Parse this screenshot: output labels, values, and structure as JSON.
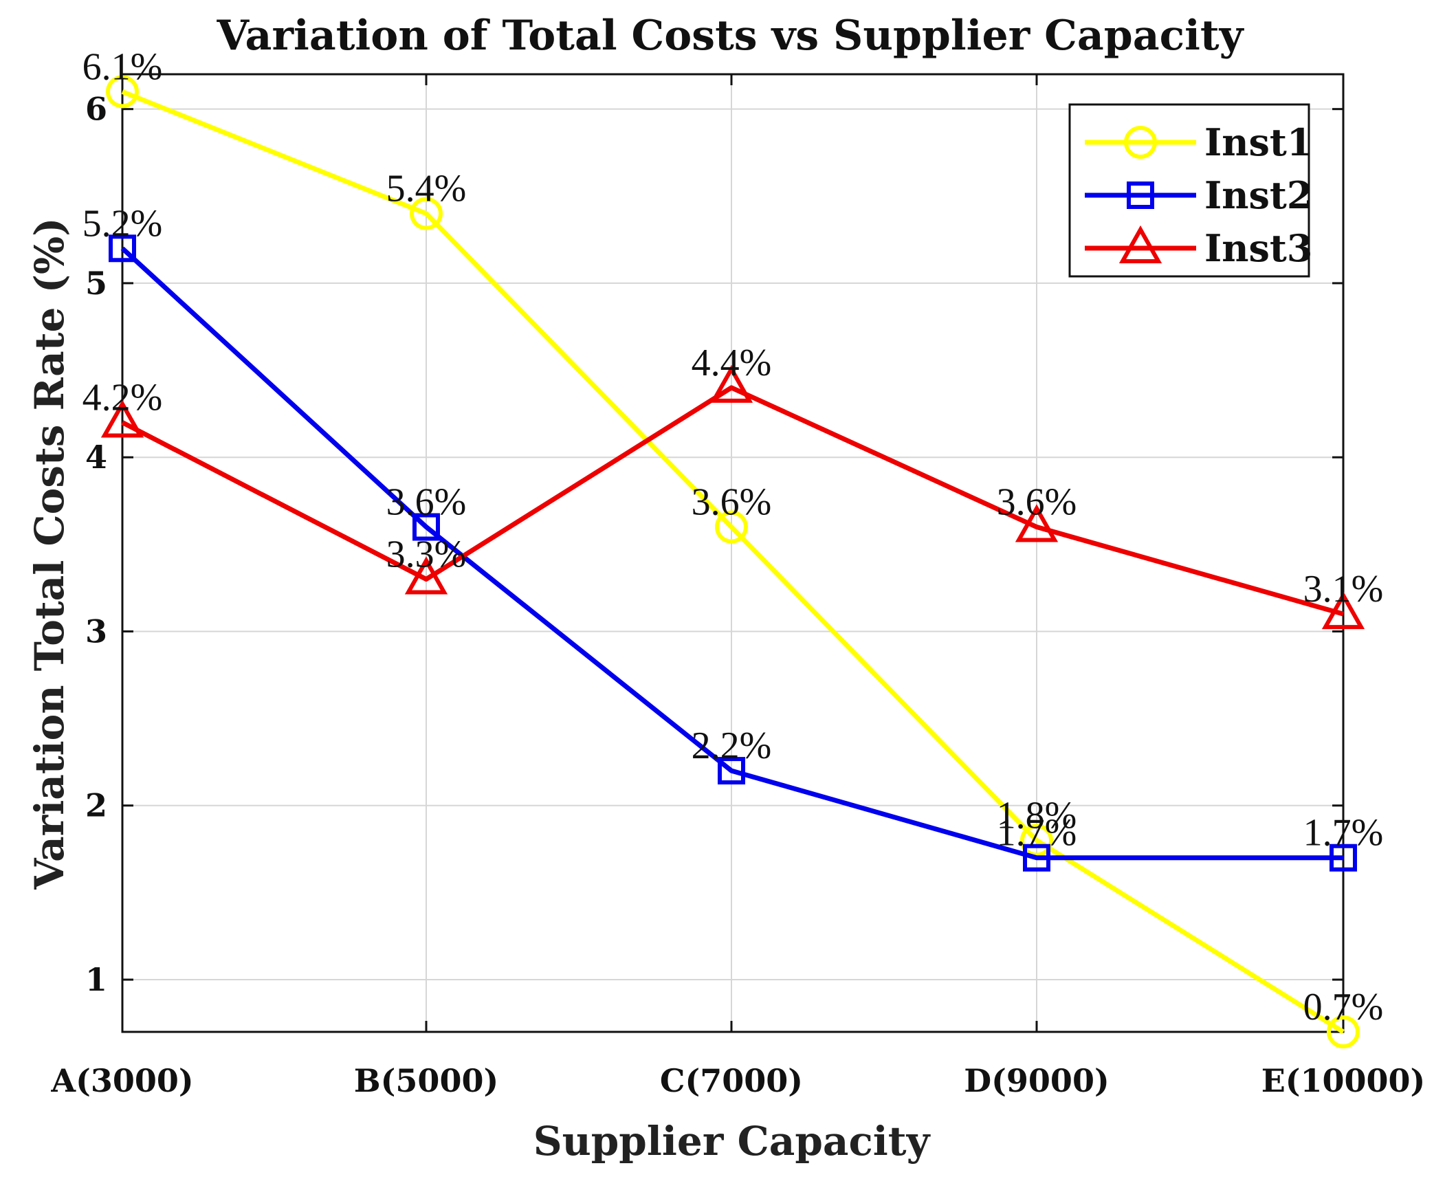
{
  "chart_data": {
    "type": "line",
    "title": "Variation of Total Costs vs Supplier Capacity",
    "xlabel": "Supplier Capacity",
    "ylabel": "Variation Total Costs Rate (%)",
    "categories": [
      "A(3000)",
      "B(5000)",
      "C(7000)",
      "D(9000)",
      "E(10000)"
    ],
    "ylim": [
      0.7,
      6.2
    ],
    "yticks": [
      1,
      2,
      3,
      4,
      5,
      6
    ],
    "grid": true,
    "legend_position": "top-right",
    "series": [
      {
        "name": "Inst1",
        "color": "#ffff00",
        "marker": "circle",
        "values": [
          6.1,
          5.4,
          3.6,
          1.8,
          0.7
        ],
        "labels": [
          "6.1%",
          "5.4%",
          "3.6%",
          "1.8%",
          "0.7%"
        ]
      },
      {
        "name": "Inst2",
        "color": "#0000ee",
        "marker": "square",
        "values": [
          5.2,
          3.6,
          2.2,
          1.7,
          1.7
        ],
        "labels": [
          "5.2%",
          "3.6%",
          "2.2%",
          "1.7%",
          "1.7%"
        ]
      },
      {
        "name": "Inst3",
        "color": "#ee0000",
        "marker": "triangle",
        "values": [
          4.2,
          3.3,
          4.4,
          3.6,
          3.1
        ],
        "labels": [
          "4.2%",
          "3.3%",
          "4.4%",
          "3.6%",
          "3.1%"
        ]
      }
    ]
  }
}
